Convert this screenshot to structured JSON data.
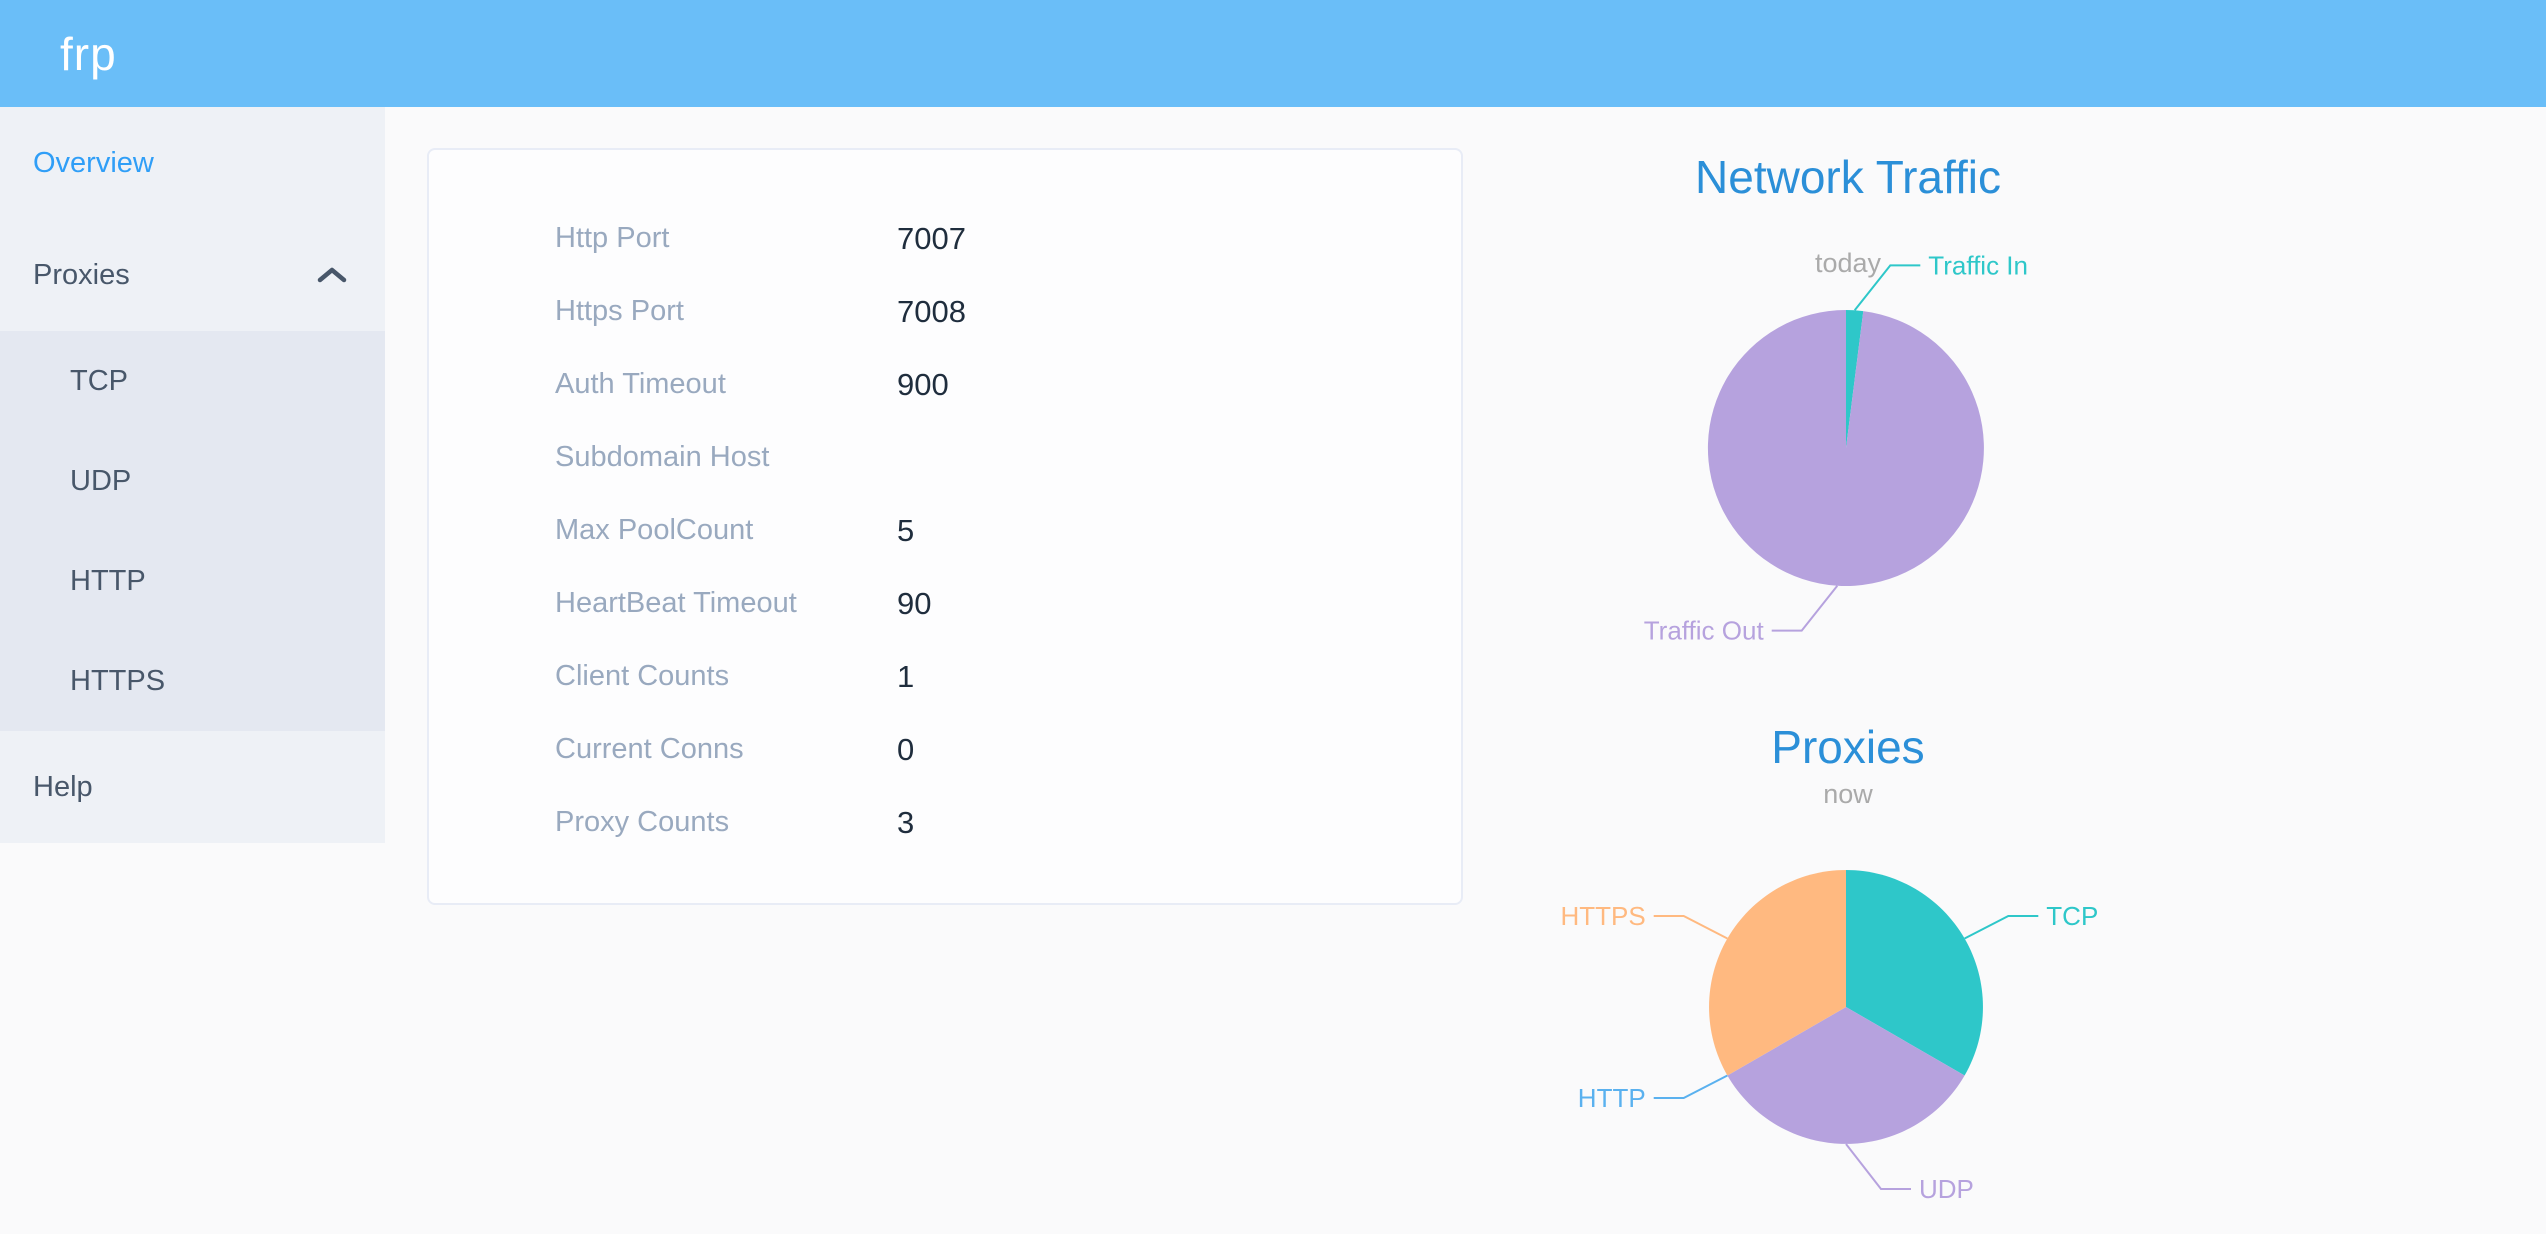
{
  "header": {
    "logo": "frp"
  },
  "sidebar": {
    "items": [
      {
        "label": "Overview",
        "active": true
      },
      {
        "label": "Proxies",
        "expanded": true,
        "children": [
          {
            "label": "TCP"
          },
          {
            "label": "UDP"
          },
          {
            "label": "HTTP"
          },
          {
            "label": "HTTPS"
          }
        ]
      },
      {
        "label": "Help"
      }
    ]
  },
  "overview_card": {
    "rows": [
      {
        "label": "Http Port",
        "value": "7007"
      },
      {
        "label": "Https Port",
        "value": "7008"
      },
      {
        "label": "Auth Timeout",
        "value": "900"
      },
      {
        "label": "Subdomain Host",
        "value": ""
      },
      {
        "label": "Max PoolCount",
        "value": "5"
      },
      {
        "label": "HeartBeat Timeout",
        "value": "90"
      },
      {
        "label": "Client Counts",
        "value": "1"
      },
      {
        "label": "Current Conns",
        "value": "0"
      },
      {
        "label": "Proxy Counts",
        "value": "3"
      }
    ]
  },
  "chart_data": [
    {
      "type": "pie",
      "title": "Network Traffic",
      "subtitle": "today",
      "legend_position": "none",
      "start_angle": "12 o'clock, clockwise",
      "series": [
        {
          "name": "Traffic In",
          "value": 2,
          "color": "#2ec7c9"
        },
        {
          "name": "Traffic Out",
          "value": 98,
          "color": "#b6a2de"
        }
      ]
    },
    {
      "type": "pie",
      "title": "Proxies",
      "subtitle": "now",
      "legend_position": "none",
      "start_angle": "12 o'clock, clockwise",
      "series": [
        {
          "name": "TCP",
          "value": 1,
          "color": "#2ec7c9"
        },
        {
          "name": "UDP",
          "value": 1,
          "color": "#b6a2de"
        },
        {
          "name": "HTTP",
          "value": 0,
          "color": "#5ab1ef"
        },
        {
          "name": "HTTPS",
          "value": 1,
          "color": "#ffb980"
        }
      ]
    }
  ],
  "colors": {
    "header_background": "#6abef8",
    "sidebar_background": "#eef1f6",
    "submenu_background": "#e4e8f1",
    "menu_text": "#48576a",
    "menu_active": "#2f9ef7",
    "card_label": "#99a9bf",
    "card_value": "#1f2d3d",
    "chart_title": "#2b8fd8",
    "chart_subtitle": "#aaaaaa"
  }
}
